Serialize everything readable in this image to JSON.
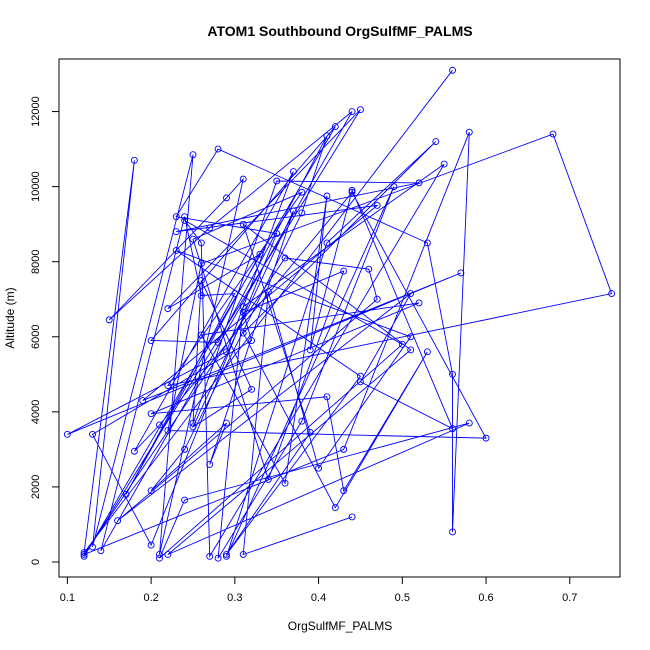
{
  "chart_data": {
    "type": "line",
    "title": "ATOM1 Southbound OrgSulfMF_PALMS",
    "xlabel": "OrgSulfMF_PALMS",
    "ylabel": "Altitude (m)",
    "xlim": [
      0.09,
      0.76
    ],
    "ylim": [
      -400,
      13400
    ],
    "xticks": [
      0.1,
      0.2,
      0.3,
      0.4,
      0.5,
      0.6,
      0.7
    ],
    "xtick_labels": [
      "0.1",
      "0.2",
      "0.3",
      "0.4",
      "0.5",
      "0.6",
      "0.7"
    ],
    "yticks": [
      0,
      2000,
      4000,
      6000,
      8000,
      10000,
      12000
    ],
    "ytick_labels": [
      "0",
      "2000",
      "4000",
      "6000",
      "8000",
      "10000",
      "12000"
    ],
    "grid": false,
    "marker": "open-circle",
    "line_color": "#0000ff",
    "series": [
      {
        "x": [
          0.56,
          0.12,
          0.18,
          0.13,
          0.25,
          0.21,
          0.31,
          0.29,
          0.15,
          0.27,
          0.44,
          0.14,
          0.24,
          0.26,
          0.3,
          0.17,
          0.33,
          0.22,
          0.45,
          0.12,
          0.42,
          0.2,
          0.28,
          0.41,
          0.38,
          0.24,
          0.2,
          0.29,
          0.27,
          0.37,
          0.25,
          0.32,
          0.26,
          0.25,
          0.35,
          0.52,
          0.23,
          0.47,
          0.19,
          0.57,
          0.1,
          0.29,
          0.37,
          0.18,
          0.21,
          0.44,
          0.6,
          0.22,
          0.26,
          0.68,
          0.75,
          0.22,
          0.38,
          0.25,
          0.34,
          0.43,
          0.31,
          0.32,
          0.13,
          0.2,
          0.35,
          0.23,
          0.28,
          0.53,
          0.56,
          0.56,
          0.58,
          0.43,
          0.12,
          0.36,
          0.46,
          0.47,
          0.16,
          0.51,
          0.45,
          0.56,
          0.44,
          0.39,
          0.41,
          0.36,
          0.26,
          0.52,
          0.2,
          0.41,
          0.43,
          0.53,
          0.42,
          0.31,
          0.54,
          0.41,
          0.29,
          0.49,
          0.38,
          0.28,
          0.31,
          0.55,
          0.27,
          0.26,
          0.24,
          0.5,
          0.21,
          0.24,
          0.58,
          0.22,
          0.51,
          0.31,
          0.39,
          0.29,
          0.45,
          0.23,
          0.51,
          0.4,
          0.34,
          0.31,
          0.44
        ],
        "y": [
          13100,
          250,
          10700,
          400,
          10850,
          200,
          10200,
          9700,
          6450,
          8900,
          12000,
          300,
          9200,
          7100,
          7150,
          1800,
          8200,
          6750,
          12050,
          150,
          11600,
          5900,
          5850,
          11350,
          9300,
          3000,
          1900,
          3700,
          2600,
          9350,
          3600,
          4600,
          7500,
          3700,
          10150,
          10100,
          8800,
          9500,
          4300,
          7700,
          3400,
          5600,
          10400,
          2950,
          3650,
          9850,
          3300,
          3500,
          7950,
          11400,
          7150,
          4700,
          9850,
          8600,
          2200,
          7750,
          6650,
          5900,
          3400,
          450,
          8750,
          9200,
          11000,
          8500,
          5000,
          800,
          11450,
          3000,
          200,
          8100,
          7800,
          7000,
          1100,
          7150,
          4800,
          3550,
          9900,
          5650,
          9750,
          2100,
          6050,
          6900,
          3950,
          4400,
          1900,
          5600,
          1450,
          6100,
          11200,
          8500,
          150,
          10000,
          3750,
          100,
          6800,
          10600,
          150,
          8500,
          9100,
          5800,
          100,
          1650,
          3700,
          200,
          5650,
          9000,
          3450,
          200,
          4950,
          8300,
          6000,
          2500,
          7200,
          200,
          1200
        ]
      }
    ]
  }
}
